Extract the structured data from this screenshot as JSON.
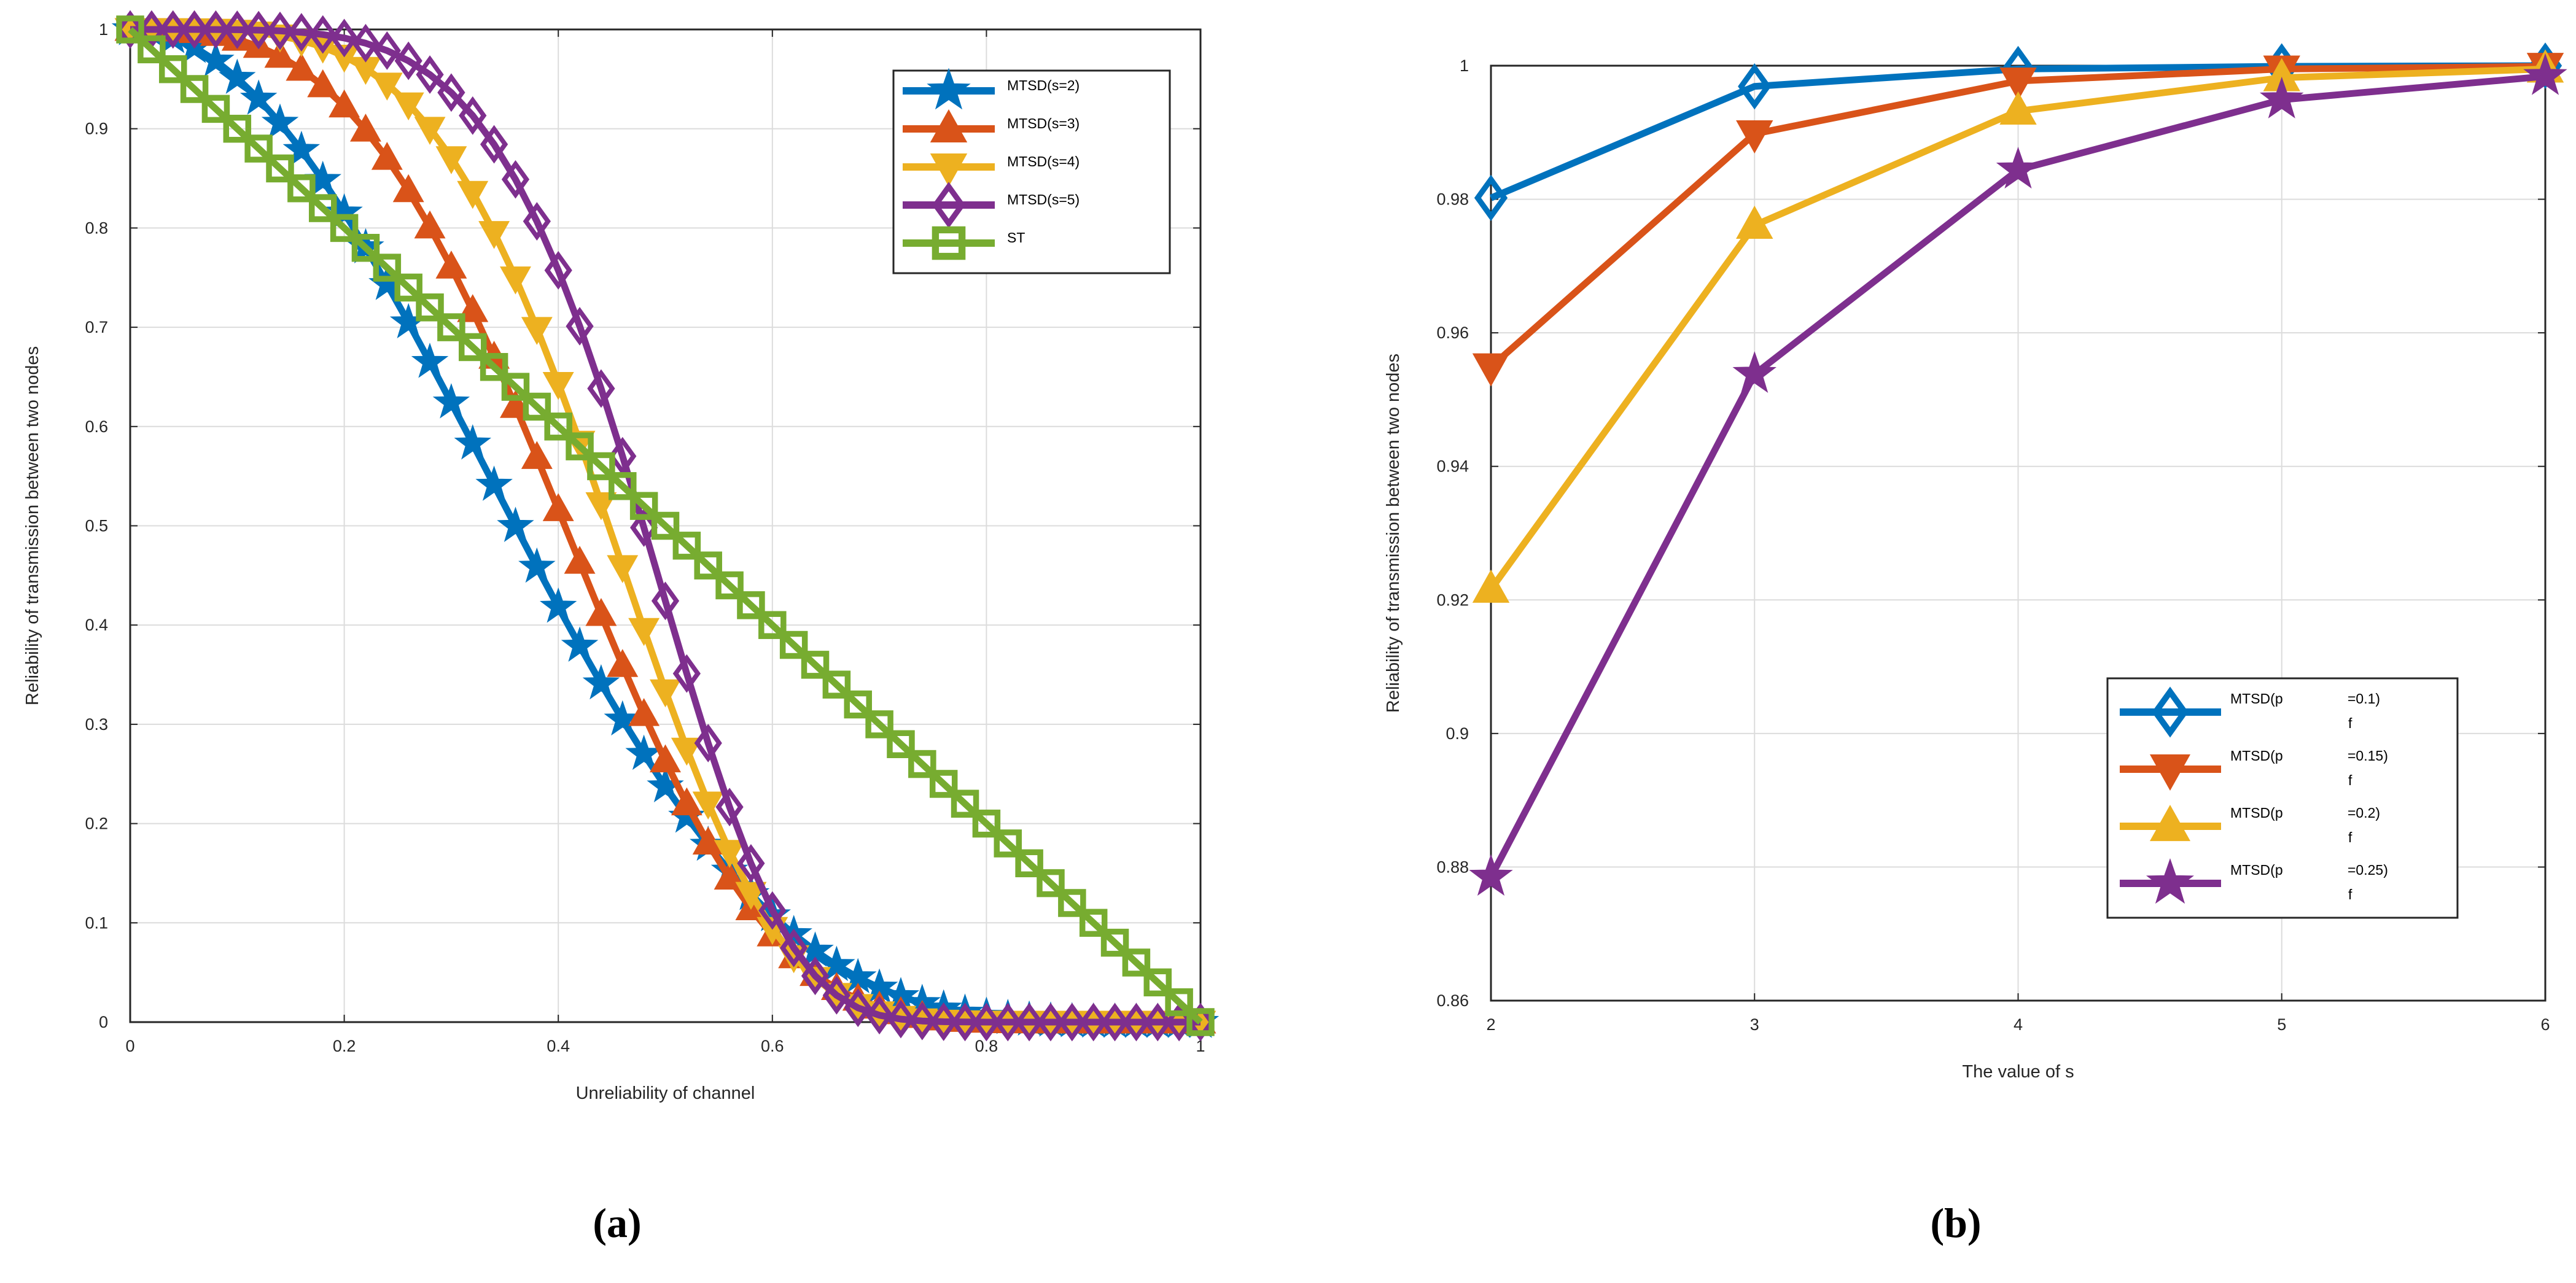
{
  "chart_data": [
    {
      "type": "line",
      "panel_label": "(a)",
      "xlabel": "Unreliability of channel",
      "ylabel": "Reliability of transmission between two nodes",
      "xlim": [
        0,
        1
      ],
      "ylim": [
        0,
        1
      ],
      "xticks": [
        0,
        0.2,
        0.4,
        0.6,
        0.8,
        1
      ],
      "xtick_labels": [
        "0",
        "0.2",
        "0.4",
        "0.6",
        "0.8",
        "1"
      ],
      "yticks": [
        0,
        0.1,
        0.2,
        0.3,
        0.4,
        0.5,
        0.6,
        0.7,
        0.8,
        0.9,
        1
      ],
      "ytick_labels": [
        "0",
        "0.1",
        "0.2",
        "0.3",
        "0.4",
        "0.5",
        "0.6",
        "0.7",
        "0.8",
        "0.9",
        "1"
      ],
      "grid": true,
      "legend_position": "top-right",
      "x_step": 0.02,
      "series": [
        {
          "name": "MTSD(s=2)",
          "color": "#0072BD",
          "marker": "star",
          "formula": "(1-x^2)^5"
        },
        {
          "name": "MTSD(s=3)",
          "color": "#D95319",
          "marker": "triangle-up",
          "formula": "(1-x^3)^10"
        },
        {
          "name": "MTSD(s=4)",
          "color": "#EDB120",
          "marker": "triangle-down",
          "formula": "(1-x^4)^17"
        },
        {
          "name": "MTSD(s=5)",
          "color": "#7E2F8E",
          "marker": "diamond",
          "formula": "(1-x^5)^27"
        },
        {
          "name": "ST",
          "color": "#77AC30",
          "marker": "square",
          "formula": "1-x"
        }
      ]
    },
    {
      "type": "line",
      "panel_label": "(b)",
      "xlabel": "The value of s",
      "ylabel": "Reliability of transmission between two nodes",
      "xlim": [
        2,
        6
      ],
      "ylim": [
        0.86,
        1
      ],
      "xticks": [
        2,
        3,
        4,
        5,
        6
      ],
      "xtick_labels": [
        "2",
        "3",
        "4",
        "5",
        "6"
      ],
      "yticks": [
        0.86,
        0.88,
        0.9,
        0.92,
        0.94,
        0.96,
        0.98,
        1
      ],
      "ytick_labels": [
        "0.86",
        "0.88",
        "0.9",
        "0.92",
        "0.94",
        "0.96",
        "0.98",
        "1"
      ],
      "grid": true,
      "legend_position": "bottom-right",
      "x": [
        2,
        3,
        4,
        5,
        6
      ],
      "series": [
        {
          "name": "MTSD(p_f=0.1)",
          "legend_prefix": "MTSD(p",
          "legend_subscript": "f",
          "legend_suffix": "=0.1)",
          "color": "#0072BD",
          "marker": "diamond",
          "values": [
            0.9802,
            0.9969,
            0.9995,
            0.9999,
            1.0
          ]
        },
        {
          "name": "MTSD(p_f=0.15)",
          "legend_prefix": "MTSD(p",
          "legend_subscript": "f",
          "legend_suffix": "=0.15)",
          "color": "#D95319",
          "marker": "triangle-down",
          "values": [
            0.9549,
            0.9898,
            0.9977,
            0.9995,
            0.9999
          ]
        },
        {
          "name": "MTSD(p_f=0.2)",
          "legend_prefix": "MTSD(p",
          "legend_subscript": "f",
          "legend_suffix": "=0.2)",
          "color": "#EDB120",
          "marker": "triangle-up",
          "values": [
            0.9216,
            0.9761,
            0.9932,
            0.9982,
            0.9995
          ]
        },
        {
          "name": "MTSD(p_f=0.25)",
          "legend_prefix": "MTSD(p",
          "legend_subscript": "f",
          "legend_suffix": "=0.25)",
          "color": "#7E2F8E",
          "marker": "star",
          "values": [
            0.8785,
            0.9538,
            0.9844,
            0.9949,
            0.9984
          ]
        }
      ]
    }
  ]
}
